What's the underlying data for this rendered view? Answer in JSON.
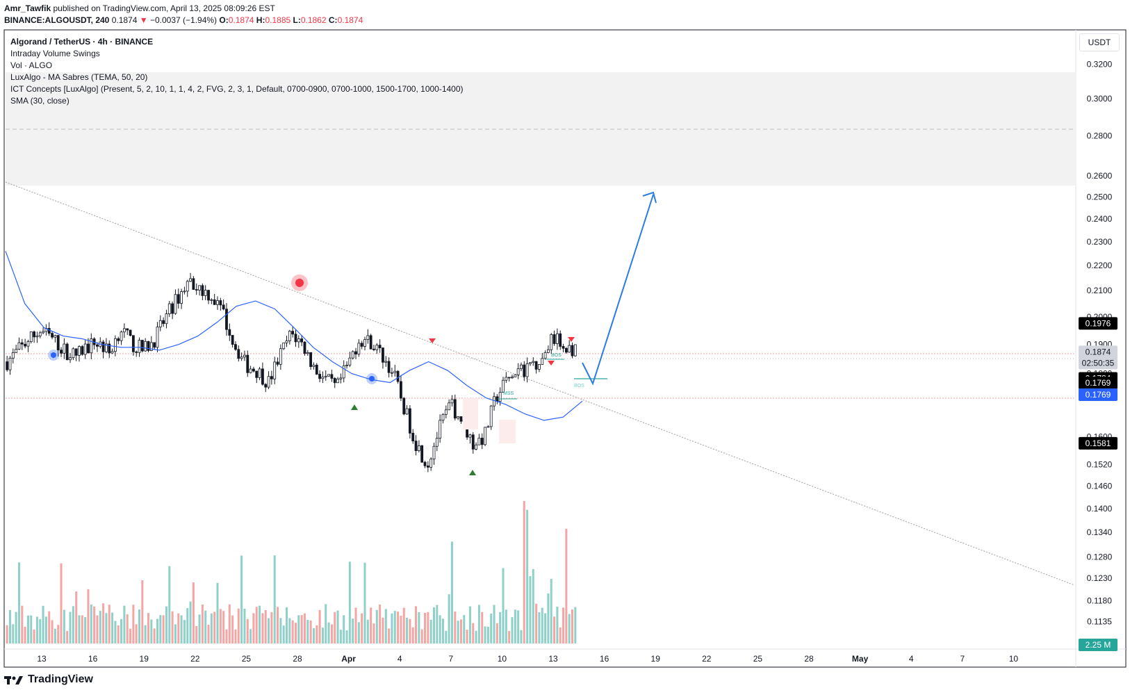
{
  "header": {
    "author": "Amr_Tawfik",
    "published_text": "published on TradingView.com, April 13, 2025 08:09:26 EST",
    "symbol": "BINANCE:ALGOUSDT, 240",
    "last": "0.1874",
    "change": "−0.0037 (−1.94%)",
    "o_label": "O:",
    "o": "0.1874",
    "h_label": "H:",
    "h": "0.1885",
    "l_label": "L:",
    "l": "0.1862",
    "c_label": "C:",
    "c": "0.1874"
  },
  "legend": {
    "title": "Algorand / TetherUS · 4h · BINANCE",
    "indicators": [
      "Intraday Volume Swings",
      "Vol · ALGO",
      "LuxAlgo - MA Sabres (TEMA, 50, 20)",
      "ICT Concepts [LuxAlgo] (Present, 5, 2, 10, 1, 1, 4, 2, FVG, 2, 3, 1, Default, 0700-0900, 0700-1000, 1500-1700, 1000-1400)",
      "SMA (30, close)"
    ]
  },
  "unit": "USDT",
  "branding": "TradingView",
  "price_tags": [
    {
      "label": "0.1976",
      "price": 0.1976,
      "bg": "#000000"
    },
    {
      "label": "0.1874",
      "sub": "02:50:35",
      "price": 0.1874,
      "bg": "#d1d4dc"
    },
    {
      "label": "0.1784",
      "price": 0.1784,
      "bg": "#000000"
    },
    {
      "label": "0.1769",
      "price": 0.1769,
      "bg": "#000000"
    },
    {
      "label": "0.1769",
      "price": 0.1769,
      "bg": "#2962ff",
      "offset": 1
    },
    {
      "label": "0.1581",
      "price": 0.1581,
      "bg": "#000000"
    },
    {
      "label": "2.25 M",
      "bg": "#26a69a",
      "volume_tag": true
    }
  ],
  "markers": [
    "BOS",
    "MSS",
    "BOS"
  ],
  "colors": {
    "up": "#26a69a",
    "down": "#ef5350",
    "sma": "#2962ff",
    "projection": "#2a7be4",
    "grid": "#f0f3fa"
  },
  "chart_data": {
    "type": "candlestick",
    "y_axis_ticks": [
      "0.3200",
      "0.3000",
      "0.2800",
      "0.2600",
      "0.2500",
      "0.2400",
      "0.2300",
      "0.2200",
      "0.2100",
      "0.2000",
      "0.1900",
      "0.1800",
      "0.1600",
      "0.1520",
      "0.1460",
      "0.1400",
      "0.1340",
      "0.1280",
      "0.1230",
      "0.1180",
      "0.1135"
    ],
    "y_axis_values": [
      0.32,
      0.3,
      0.28,
      0.26,
      0.25,
      0.24,
      0.23,
      0.22,
      0.21,
      0.2,
      0.19,
      0.18,
      0.16,
      0.152,
      0.146,
      0.14,
      0.134,
      0.128,
      0.123,
      0.118,
      0.1135
    ],
    "y_scale": "log",
    "x_axis_ticks": [
      "13",
      "16",
      "19",
      "22",
      "25",
      "28",
      "Apr",
      "4",
      "7",
      "10",
      "13",
      "16",
      "19",
      "22",
      "25",
      "28",
      "May",
      "4",
      "7",
      "10"
    ],
    "series": [
      {
        "name": "ALGOUSDT",
        "approx_close_path": [
          0.184,
          0.188,
          0.192,
          0.195,
          0.192,
          0.188,
          0.186,
          0.189,
          0.191,
          0.187,
          0.196,
          0.19,
          0.188,
          0.192,
          0.2,
          0.207,
          0.214,
          0.211,
          0.208,
          0.201,
          0.19,
          0.183,
          0.181,
          0.177,
          0.186,
          0.194,
          0.19,
          0.182,
          0.178,
          0.175,
          0.183,
          0.192,
          0.191,
          0.186,
          0.18,
          0.168,
          0.158,
          0.152,
          0.162,
          0.17,
          0.165,
          0.158,
          0.16,
          0.172,
          0.178,
          0.18,
          0.183,
          0.185,
          0.192,
          0.19,
          0.1874
        ]
      },
      {
        "name": "SMA (30, close)",
        "approx_path": [
          0.226,
          0.205,
          0.196,
          0.193,
          0.192,
          0.19,
          0.189,
          0.189,
          0.188,
          0.19,
          0.193,
          0.198,
          0.204,
          0.206,
          0.203,
          0.196,
          0.189,
          0.184,
          0.18,
          0.178,
          0.177,
          0.181,
          0.184,
          0.181,
          0.176,
          0.172,
          0.17,
          0.167,
          0.165,
          0.166,
          0.171
        ]
      }
    ],
    "annotations": {
      "projection_peak": 0.255,
      "projection_dip": 0.1784,
      "trendline": "descending from upper-left to lower-right",
      "resistance_zone": [
        0.26,
        0.32
      ],
      "support_lines": [
        0.1903,
        0.1769
      ],
      "volume_max_label": "2.25 M"
    }
  }
}
